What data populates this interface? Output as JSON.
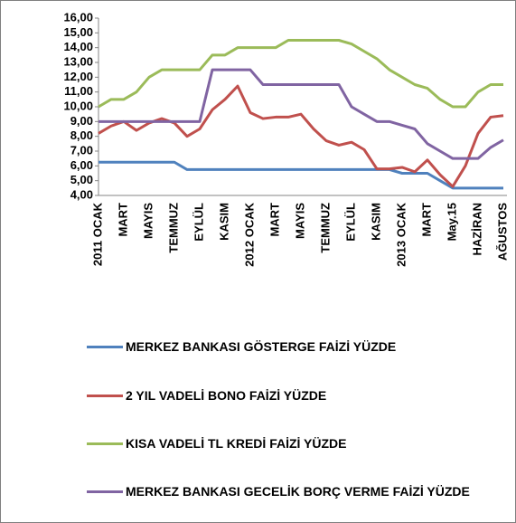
{
  "chart_data": {
    "type": "line",
    "categories": [
      "2011 OCAK",
      null,
      "MART",
      null,
      "MAYIS",
      null,
      "TEMMUZ",
      null,
      "EYLÜL",
      null,
      "KASIM",
      null,
      "2012 OCAK",
      null,
      "MART",
      null,
      "MAYIS",
      null,
      "TEMMUZ",
      null,
      "EYLÜL",
      null,
      "KASIM",
      null,
      "2013 OCAK",
      null,
      "MART",
      null,
      "May.15",
      null,
      "HAZİRAN",
      null,
      "AĞUSTOS"
    ],
    "series": [
      {
        "name": "MERKEZ BANKASI GÖSTERGE FAİZİ YÜZDE",
        "color": "#4f81bd",
        "values": [
          6.25,
          6.25,
          6.25,
          6.25,
          6.25,
          6.25,
          6.25,
          5.75,
          5.75,
          5.75,
          5.75,
          5.75,
          5.75,
          5.75,
          5.75,
          5.75,
          5.75,
          5.75,
          5.75,
          5.75,
          5.75,
          5.75,
          5.75,
          5.75,
          5.5,
          5.5,
          5.5,
          5.0,
          4.5,
          4.5,
          4.5,
          4.5,
          4.5
        ]
      },
      {
        "name": "2 YIL VADELİ BONO FAİZİ YÜZDE",
        "color": "#c0504d",
        "values": [
          8.2,
          8.7,
          9.0,
          8.4,
          8.9,
          9.2,
          8.9,
          8.0,
          8.5,
          9.8,
          10.5,
          11.4,
          9.6,
          9.2,
          9.3,
          9.3,
          9.5,
          8.5,
          7.7,
          7.4,
          7.6,
          7.1,
          5.8,
          5.8,
          5.9,
          5.6,
          6.4,
          5.4,
          4.6,
          6.0,
          8.2,
          9.3,
          9.4
        ]
      },
      {
        "name": "KISA VADELİ TL KREDİ FAİZİ YÜZDE",
        "color": "#9bbb59",
        "values": [
          10,
          10.5,
          10.5,
          11,
          12,
          12.5,
          12.5,
          12.5,
          12.5,
          13.5,
          13.5,
          14,
          14,
          14,
          14,
          14.5,
          14.5,
          14.5,
          14.5,
          14.5,
          14.25,
          13.75,
          13.25,
          12.5,
          12,
          11.5,
          11.25,
          10.5,
          10,
          10,
          11,
          11.5,
          11.5
        ]
      },
      {
        "name": "MERKEZ BANKASI GECELİK BORÇ VERME FAİZİ YÜZDE",
        "color": "#8064a2",
        "values": [
          9,
          9,
          9,
          9,
          9,
          9,
          9,
          9,
          9,
          12.5,
          12.5,
          12.5,
          12.5,
          11.5,
          11.5,
          11.5,
          11.5,
          11.5,
          11.5,
          11.5,
          10,
          9.5,
          9,
          9,
          8.75,
          8.5,
          7.5,
          7,
          6.5,
          6.5,
          6.5,
          7.25,
          7.75
        ]
      }
    ],
    "ylim": [
      4,
      16
    ],
    "yticks": [
      {
        "value": 4,
        "label": "4,00"
      },
      {
        "value": 5,
        "label": "5,00"
      },
      {
        "value": 6,
        "label": "6,00"
      },
      {
        "value": 7,
        "label": "7,00"
      },
      {
        "value": 8,
        "label": "8,00"
      },
      {
        "value": 9,
        "label": "9,00"
      },
      {
        "value": 10,
        "label": "10,00"
      },
      {
        "value": 11,
        "label": "11,00"
      },
      {
        "value": 12,
        "label": "12,00"
      },
      {
        "value": 13,
        "label": "13,00"
      },
      {
        "value": 14,
        "label": "14,00"
      },
      {
        "value": 15,
        "label": "15,00"
      },
      {
        "value": 16,
        "label": "16,00"
      }
    ],
    "grid": false
  }
}
